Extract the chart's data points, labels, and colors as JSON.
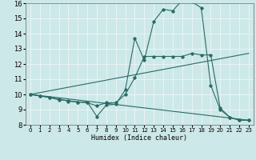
{
  "xlabel": "Humidex (Indice chaleur)",
  "xlim": [
    -0.5,
    23.5
  ],
  "ylim": [
    8,
    16
  ],
  "xticks": [
    0,
    1,
    2,
    3,
    4,
    5,
    6,
    7,
    8,
    9,
    10,
    11,
    12,
    13,
    14,
    15,
    16,
    17,
    18,
    19,
    20,
    21,
    22,
    23
  ],
  "yticks": [
    8,
    9,
    10,
    11,
    12,
    13,
    14,
    15,
    16
  ],
  "bg_color": "#cde8e8",
  "line_color": "#2a6b65",
  "grid_color": "#e8f5f5",
  "lines": [
    {
      "x": [
        0,
        1,
        2,
        3,
        4,
        5,
        6,
        7,
        8,
        9,
        10,
        11,
        12,
        13,
        14,
        15,
        16,
        17,
        18,
        19,
        20,
        21,
        22,
        23
      ],
      "y": [
        10,
        9.9,
        9.8,
        9.7,
        9.55,
        9.5,
        9.5,
        8.55,
        9.3,
        9.35,
        10.3,
        13.7,
        12.25,
        14.8,
        15.6,
        15.5,
        16.2,
        16.1,
        15.7,
        10.6,
        9.0,
        8.5,
        8.3,
        8.3
      ],
      "marker": true
    },
    {
      "x": [
        0,
        1,
        2,
        3,
        4,
        5,
        6,
        7,
        8,
        9,
        10,
        11,
        12,
        13,
        14,
        15,
        16,
        17,
        18,
        19,
        20,
        21,
        22,
        23
      ],
      "y": [
        10,
        9.9,
        9.8,
        9.65,
        9.6,
        9.5,
        9.45,
        9.25,
        9.45,
        9.45,
        10.0,
        11.1,
        12.5,
        12.5,
        12.5,
        12.5,
        12.5,
        12.7,
        12.6,
        12.6,
        9.1,
        8.5,
        8.3,
        8.3
      ],
      "marker": true
    },
    {
      "x": [
        0,
        23
      ],
      "y": [
        10,
        12.7
      ],
      "marker": false
    },
    {
      "x": [
        0,
        23
      ],
      "y": [
        10,
        8.3
      ],
      "marker": false
    }
  ]
}
